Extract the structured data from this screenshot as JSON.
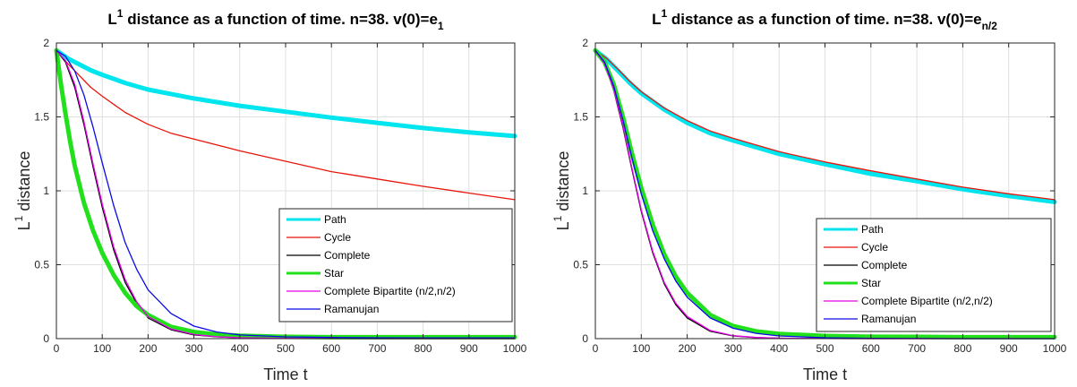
{
  "colors": {
    "path": "#00e5ee",
    "cycle": "#e8160c",
    "complete": "#000000",
    "star": "#22e01c",
    "complete_bipartite": "#e600e6",
    "ramanujan": "#0a0ae6"
  },
  "chart_data": [
    {
      "type": "line",
      "title": {
        "pre": "L",
        "sup": "1",
        "main": " distance as a function of time. n=38.  v(0)=e",
        "sub": "1"
      },
      "xlabel": "Time t",
      "ylabel": {
        "pre": "L",
        "sup": "1",
        "post": " distance"
      },
      "xlim": [
        0,
        1000
      ],
      "ylim": [
        0,
        2
      ],
      "xticks": [
        0,
        100,
        200,
        300,
        400,
        500,
        600,
        700,
        800,
        900,
        1000
      ],
      "yticks": [
        0,
        0.5,
        1,
        1.5,
        2
      ],
      "ytick_labels": [
        "0",
        "0.5",
        "1",
        "1.5",
        "2"
      ],
      "grid": true,
      "legend_placement": "lower-right",
      "series": [
        {
          "name": "Path",
          "color_key": "path",
          "width": 5,
          "x": [
            0,
            25,
            50,
            75,
            100,
            150,
            200,
            250,
            300,
            400,
            500,
            600,
            700,
            800,
            900,
            1000
          ],
          "y": [
            1.95,
            1.895,
            1.855,
            1.815,
            1.785,
            1.73,
            1.685,
            1.655,
            1.625,
            1.575,
            1.535,
            1.495,
            1.46,
            1.425,
            1.395,
            1.37
          ]
        },
        {
          "name": "Cycle",
          "color_key": "cycle",
          "width": 1.3,
          "x": [
            0,
            25,
            50,
            75,
            100,
            150,
            200,
            250,
            300,
            400,
            500,
            600,
            700,
            800,
            900,
            1000
          ],
          "y": [
            1.95,
            1.86,
            1.78,
            1.7,
            1.64,
            1.53,
            1.45,
            1.39,
            1.35,
            1.27,
            1.2,
            1.13,
            1.08,
            1.03,
            0.985,
            0.94
          ]
        },
        {
          "name": "Complete",
          "color_key": "complete",
          "width": 1.3,
          "x": [
            0,
            20,
            40,
            60,
            80,
            100,
            125,
            150,
            175,
            200,
            250,
            300,
            350,
            400,
            500,
            600,
            700,
            800,
            900,
            1000
          ],
          "y": [
            1.95,
            1.87,
            1.7,
            1.45,
            1.16,
            0.89,
            0.6,
            0.38,
            0.24,
            0.14,
            0.06,
            0.025,
            0.012,
            0.006,
            0.002,
            0.001,
            0,
            0,
            0,
            0
          ]
        },
        {
          "name": "Star",
          "color_key": "star",
          "width": 5,
          "x": [
            0,
            10,
            20,
            30,
            40,
            60,
            80,
            100,
            125,
            150,
            175,
            200,
            250,
            300,
            350,
            400,
            500,
            600,
            700,
            800,
            900,
            1000
          ],
          "y": [
            1.95,
            1.72,
            1.52,
            1.33,
            1.17,
            0.92,
            0.73,
            0.58,
            0.43,
            0.31,
            0.22,
            0.16,
            0.08,
            0.045,
            0.028,
            0.02,
            0.012,
            0.01,
            0.01,
            0.01,
            0.01,
            0.01
          ]
        },
        {
          "name": "Complete Bipartite (n/2,n/2)",
          "color_key": "complete_bipartite",
          "width": 1.3,
          "x": [
            0,
            20,
            40,
            60,
            80,
            100,
            125,
            150,
            175,
            200,
            250,
            300,
            350,
            400,
            500,
            600,
            700,
            800,
            900,
            1000
          ],
          "y": [
            1.95,
            1.88,
            1.72,
            1.47,
            1.18,
            0.91,
            0.62,
            0.4,
            0.25,
            0.15,
            0.065,
            0.028,
            0.013,
            0.006,
            0.002,
            0.001,
            0,
            0,
            0,
            0
          ]
        },
        {
          "name": "Ramanujan",
          "color_key": "ramanujan",
          "width": 1.3,
          "x": [
            0,
            20,
            40,
            60,
            80,
            100,
            125,
            150,
            175,
            200,
            250,
            300,
            350,
            400,
            500,
            600,
            700,
            800,
            900,
            1000
          ],
          "y": [
            1.95,
            1.91,
            1.81,
            1.65,
            1.43,
            1.19,
            0.9,
            0.65,
            0.47,
            0.33,
            0.17,
            0.085,
            0.045,
            0.025,
            0.012,
            0.008,
            0.006,
            0.005,
            0.005,
            0.005
          ]
        }
      ]
    },
    {
      "type": "line",
      "title": {
        "pre": "L",
        "sup": "1",
        "main": " distance as a function of time. n=38.  v(0)=e",
        "sub": "n/2"
      },
      "xlabel": "Time t",
      "ylabel": {
        "pre": "L",
        "sup": "1",
        "post": " distance"
      },
      "xlim": [
        0,
        1000
      ],
      "ylim": [
        0,
        2
      ],
      "xticks": [
        0,
        100,
        200,
        300,
        400,
        500,
        600,
        700,
        800,
        900,
        1000
      ],
      "yticks": [
        0,
        0.5,
        1,
        1.5,
        2
      ],
      "ytick_labels": [
        "0",
        "0.5",
        "1",
        "1.5",
        "2"
      ],
      "grid": true,
      "legend_placement": "lower-right",
      "series": [
        {
          "name": "Path",
          "color_key": "path",
          "width": 5,
          "x": [
            0,
            25,
            50,
            75,
            100,
            150,
            200,
            250,
            300,
            400,
            500,
            600,
            700,
            800,
            900,
            1000
          ],
          "y": [
            1.95,
            1.89,
            1.81,
            1.73,
            1.66,
            1.55,
            1.46,
            1.39,
            1.34,
            1.25,
            1.18,
            1.115,
            1.065,
            1.01,
            0.965,
            0.925
          ]
        },
        {
          "name": "Cycle",
          "color_key": "cycle",
          "width": 1.3,
          "x": [
            0,
            25,
            50,
            75,
            100,
            150,
            200,
            250,
            300,
            400,
            500,
            600,
            700,
            800,
            900,
            1000
          ],
          "y": [
            1.95,
            1.895,
            1.82,
            1.74,
            1.67,
            1.56,
            1.475,
            1.405,
            1.355,
            1.265,
            1.195,
            1.135,
            1.08,
            1.025,
            0.98,
            0.94
          ]
        },
        {
          "name": "Complete",
          "color_key": "complete",
          "width": 1.3,
          "x": [
            0,
            20,
            40,
            60,
            80,
            100,
            125,
            150,
            175,
            200,
            250,
            300,
            350,
            400,
            500,
            600,
            700,
            800,
            900,
            1000
          ],
          "y": [
            1.95,
            1.86,
            1.68,
            1.43,
            1.14,
            0.86,
            0.58,
            0.37,
            0.23,
            0.14,
            0.05,
            0.018,
            0.007,
            0.003,
            0.001,
            0,
            0,
            0,
            0,
            0
          ]
        },
        {
          "name": "Star",
          "color_key": "star",
          "width": 5,
          "x": [
            0,
            20,
            40,
            60,
            80,
            100,
            125,
            150,
            175,
            200,
            250,
            300,
            350,
            400,
            500,
            600,
            700,
            800,
            900,
            1000
          ],
          "y": [
            1.95,
            1.87,
            1.72,
            1.5,
            1.25,
            1.02,
            0.77,
            0.57,
            0.42,
            0.31,
            0.16,
            0.085,
            0.05,
            0.032,
            0.018,
            0.013,
            0.012,
            0.01,
            0.01,
            0.01
          ]
        },
        {
          "name": "Complete Bipartite (n/2,n/2)",
          "color_key": "complete_bipartite",
          "width": 1.3,
          "x": [
            0,
            20,
            40,
            60,
            80,
            100,
            125,
            150,
            175,
            200,
            250,
            300,
            350,
            400,
            500,
            600,
            700,
            800,
            900,
            1000
          ],
          "y": [
            1.95,
            1.86,
            1.69,
            1.44,
            1.15,
            0.87,
            0.59,
            0.38,
            0.24,
            0.15,
            0.055,
            0.02,
            0.008,
            0.003,
            0.001,
            0,
            0,
            0,
            0,
            0
          ]
        },
        {
          "name": "Ramanujan",
          "color_key": "ramanujan",
          "width": 1.3,
          "x": [
            0,
            20,
            40,
            60,
            80,
            100,
            125,
            150,
            175,
            200,
            250,
            300,
            350,
            400,
            500,
            600,
            700,
            800,
            900,
            1000
          ],
          "y": [
            1.95,
            1.87,
            1.71,
            1.48,
            1.22,
            0.98,
            0.73,
            0.54,
            0.39,
            0.28,
            0.14,
            0.07,
            0.036,
            0.018,
            0.006,
            0.002,
            0.001,
            0,
            0,
            0
          ]
        }
      ]
    }
  ]
}
